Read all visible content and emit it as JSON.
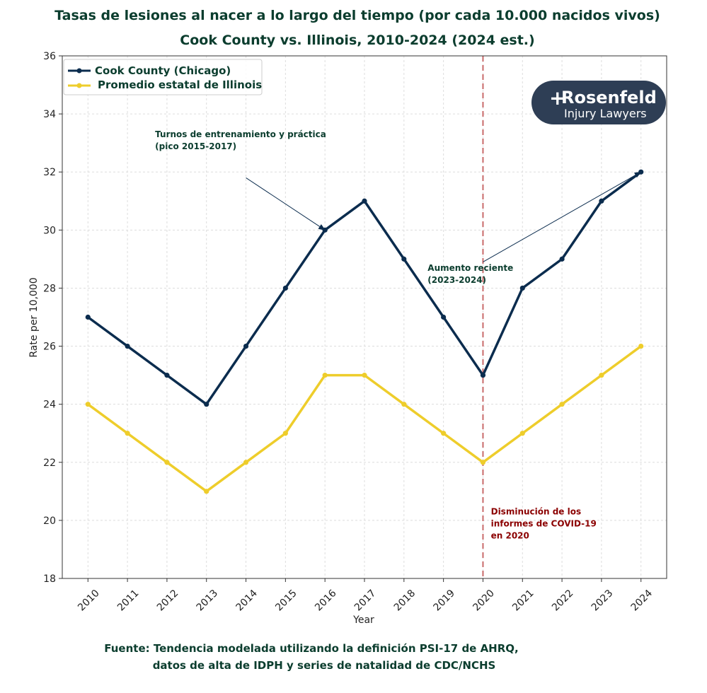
{
  "chart_data": {
    "type": "line",
    "title": "Tasas de lesiones al nacer a lo largo del tiempo (por cada 10.000 nacidos vivos)",
    "subtitle": "Cook County vs. Illinois, 2010-2024 (2024 est.)",
    "xlabel": "Year",
    "ylabel": "Rate per 10,000",
    "ylim": [
      18,
      36
    ],
    "yticks": [
      18,
      20,
      22,
      24,
      26,
      28,
      30,
      32,
      34,
      36
    ],
    "x": [
      2010,
      2011,
      2012,
      2013,
      2014,
      2015,
      2016,
      2017,
      2018,
      2019,
      2020,
      2021,
      2022,
      2023,
      2024
    ],
    "grid": true,
    "legend_position": "top-left",
    "series": [
      {
        "name": "Cook County (Chicago)",
        "color": "#0b2c4e",
        "values": [
          27,
          26,
          25,
          24,
          26,
          28,
          30,
          31,
          29,
          27,
          25,
          28,
          29,
          31,
          32
        ]
      },
      {
        "name": "Promedio estatal de Illinois",
        "color": "#eecd2b",
        "values": [
          24,
          23,
          22,
          21,
          22,
          23,
          25,
          25,
          24,
          23,
          22,
          23,
          24,
          25,
          26
        ]
      }
    ],
    "vline": {
      "x": 2020,
      "color": "#c96a6a"
    },
    "annotations": [
      {
        "id": "training",
        "lines": [
          "Turnos de entrenamiento y práctica",
          "(pico 2015-2017)"
        ],
        "text_x": 2011.7,
        "text_y": 33.2,
        "arrow_from": [
          2014,
          31.8
        ],
        "arrow_to": [
          2016,
          30
        ]
      },
      {
        "id": "recent",
        "lines": [
          "Aumento reciente",
          "(2023-2024)"
        ],
        "text_x": 2018.6,
        "text_y": 28.6,
        "arrow_from": [
          2020,
          28.9
        ],
        "arrow_to": [
          2024,
          32
        ]
      },
      {
        "id": "covid",
        "lines": [
          "Disminución de los",
          "informes de COVID-19",
          "en 2020"
        ],
        "text_x": 2020.2,
        "text_y": 20.2,
        "red": true
      }
    ]
  },
  "logo": {
    "main": "Rosenfeld",
    "sub": "Injury Lawyers",
    "bg_color": "#2e3e55"
  },
  "source": {
    "line1": "Fuente: Tendencia modelada utilizando la definición PSI-17 de AHRQ,",
    "line2": "datos de alta de IDPH y series de natalidad de CDC/NCHS"
  }
}
